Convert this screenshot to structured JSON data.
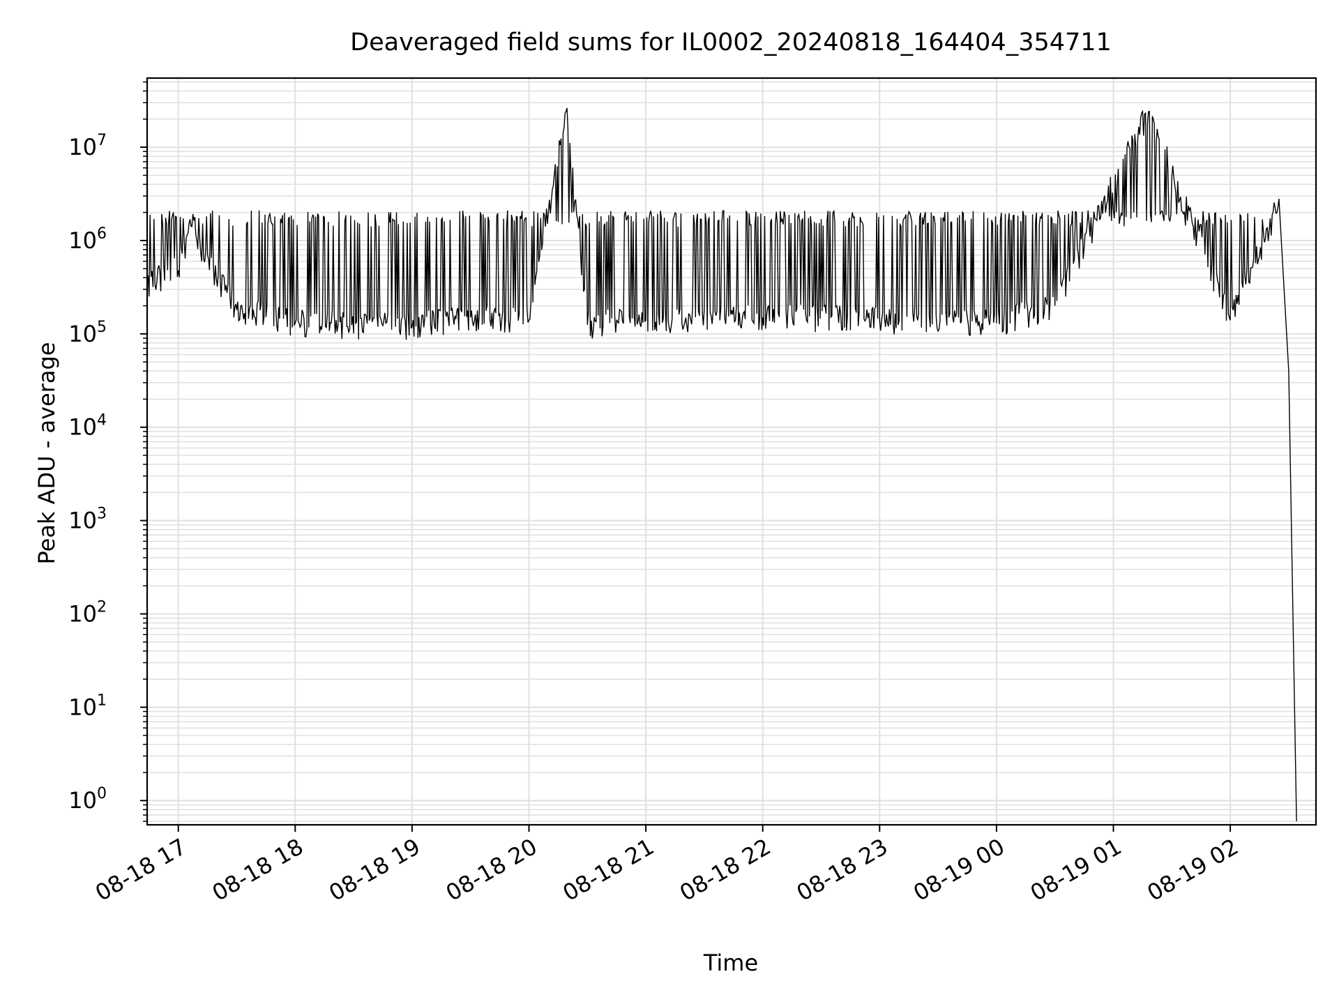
{
  "chart_data": {
    "type": "line",
    "title": "Deaveraged field sums for IL0002_20240818_164404_354711",
    "xlabel": "Time",
    "ylabel": "Peak ADU - average",
    "y_scale": "log",
    "grid": true,
    "grid_minor": true,
    "line_color": "#000000",
    "grid_color": "#e0e0e0",
    "xlim": [
      "2024-08-18 16:44",
      "2024-08-19 02:44"
    ],
    "ylim": [
      0.55,
      55000000
    ],
    "x_ticks": [
      {
        "t": "2024-08-18 17:00",
        "label": "08-18 17"
      },
      {
        "t": "2024-08-18 18:00",
        "label": "08-18 18"
      },
      {
        "t": "2024-08-18 19:00",
        "label": "08-18 19"
      },
      {
        "t": "2024-08-18 20:00",
        "label": "08-18 20"
      },
      {
        "t": "2024-08-18 21:00",
        "label": "08-18 21"
      },
      {
        "t": "2024-08-18 22:00",
        "label": "08-18 22"
      },
      {
        "t": "2024-08-18 23:00",
        "label": "08-18 23"
      },
      {
        "t": "2024-08-19 00:00",
        "label": "08-19 00"
      },
      {
        "t": "2024-08-19 01:00",
        "label": "08-19 01"
      },
      {
        "t": "2024-08-19 02:00",
        "label": "08-19 02"
      }
    ],
    "y_ticks": [
      {
        "value": 1,
        "base": "10",
        "exp": "0"
      },
      {
        "value": 10,
        "base": "10",
        "exp": "1"
      },
      {
        "value": 100,
        "base": "10",
        "exp": "2"
      },
      {
        "value": 1000,
        "base": "10",
        "exp": "3"
      },
      {
        "value": 10000,
        "base": "10",
        "exp": "4"
      },
      {
        "value": 100000,
        "base": "10",
        "exp": "5"
      },
      {
        "value": 1000000,
        "base": "10",
        "exp": "6"
      },
      {
        "value": 10000000,
        "base": "10",
        "exp": "7"
      }
    ],
    "series": [
      {
        "values": [
          {
            "t": "2024-08-18 16:44",
            "y": 350000
          },
          {
            "t": "2024-08-18 17:00",
            "y": 480000
          },
          {
            "t": "2024-08-18 17:05",
            "y": 1200000
          },
          {
            "t": "2024-08-18 17:30",
            "y": 180000
          },
          {
            "t": "2024-08-18 18:00",
            "y": 130000
          },
          {
            "t": "2024-08-18 19:00",
            "y": 120000
          },
          {
            "t": "2024-08-18 19:30",
            "y": 150000
          },
          {
            "t": "2024-08-18 20:00",
            "y": 140000
          },
          {
            "t": "2024-08-18 20:19",
            "y": 24000000
          },
          {
            "t": "2024-08-18 20:30",
            "y": 125000
          },
          {
            "t": "2024-08-18 21:00",
            "y": 140000
          },
          {
            "t": "2024-08-18 22:00",
            "y": 150000
          },
          {
            "t": "2024-08-18 23:00",
            "y": 140000
          },
          {
            "t": "2024-08-19 00:00",
            "y": 130000
          },
          {
            "t": "2024-08-19 00:30",
            "y": 200000
          },
          {
            "t": "2024-08-19 01:18",
            "y": 24000000
          },
          {
            "t": "2024-08-19 02:00",
            "y": 140000
          },
          {
            "t": "2024-08-19 02:20",
            "y": 1300000
          },
          {
            "t": "2024-08-19 02:25",
            "y": 2800000
          },
          {
            "t": "2024-08-19 02:30",
            "y": 40000
          },
          {
            "t": "2024-08-19 02:34",
            "y": 0.6
          }
        ]
      }
    ]
  }
}
